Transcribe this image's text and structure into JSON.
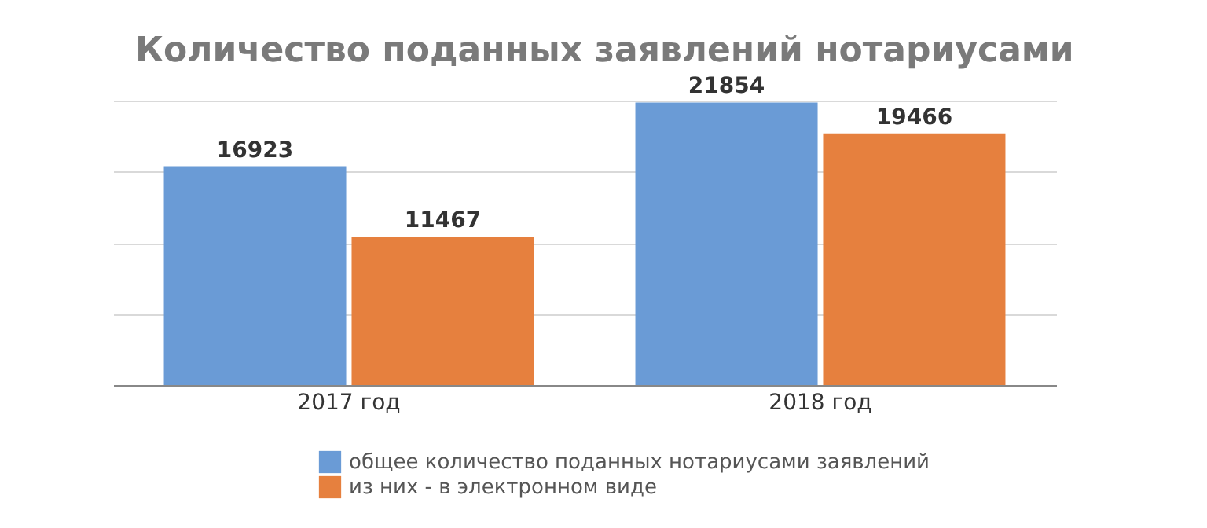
{
  "chart_data": {
    "type": "bar",
    "title": "Количество поданных заявлений нотариусами",
    "categories": [
      "2017 год",
      "2018 год"
    ],
    "series": [
      {
        "name": "общее количество поданных нотариусами заявлений",
        "color": "#6a9bd6",
        "values": [
          16923,
          21854
        ]
      },
      {
        "name": "из них - в электронном виде",
        "color": "#e6803e",
        "values": [
          11467,
          19466
        ]
      }
    ],
    "ylim": [
      0,
      22000
    ],
    "yticks": [
      {
        "value": 0,
        "label": null
      },
      {
        "value": 5500,
        "label": null
      },
      {
        "value": 11000,
        "label": null
      },
      {
        "value": 16500,
        "label": null
      },
      {
        "value": 22000,
        "label": null
      }
    ],
    "grid": "y",
    "data_labels": true,
    "legend": "bottom",
    "tick_labels": "x"
  }
}
